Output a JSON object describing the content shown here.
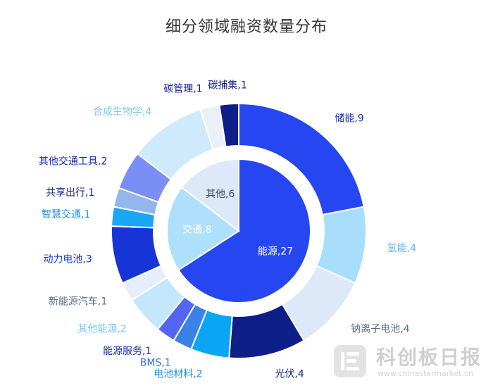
{
  "chart_data": {
    "type": "pie",
    "title": "细分领域融资数量分布",
    "inner": [
      {
        "label": "能源",
        "value": 27,
        "color": "#2546f0"
      },
      {
        "label": "交通",
        "value": 8,
        "color": "#aee0fb"
      },
      {
        "label": "其他",
        "value": 6,
        "color": "#dde9f8"
      }
    ],
    "outer": [
      {
        "label": "储能",
        "value": 9,
        "color": "#2546f0",
        "label_color": "#1a2fa8"
      },
      {
        "label": "氢能",
        "value": 4,
        "color": "#a8ddfb",
        "label_color": "#5fb8ec"
      },
      {
        "label": "钠离子电池",
        "value": 4,
        "color": "#dde9f8",
        "label_color": "#5a6b85"
      },
      {
        "label": "光伏",
        "value": 4,
        "color": "#0e1f8a",
        "label_color": "#0e1f8a"
      },
      {
        "label": "电池材料",
        "value": 2,
        "color": "#0aa6f5",
        "label_color": "#1a8fe0"
      },
      {
        "label": "BMS",
        "value": 1,
        "color": "#3b82e6",
        "label_color": "#2f6fd6"
      },
      {
        "label": "能源服务",
        "value": 1,
        "color": "#5365f2",
        "label_color": "#1a2fa8"
      },
      {
        "label": "其他能源",
        "value": 2,
        "color": "#c5e7fb",
        "label_color": "#79c7f2"
      },
      {
        "label": "新能源汽车",
        "value": 1,
        "color": "#e5eefa",
        "label_color": "#5a6b85"
      },
      {
        "label": "动力电池",
        "value": 3,
        "color": "#1734d6",
        "label_color": "#1734d6"
      },
      {
        "label": "智慧交通",
        "value": 1,
        "color": "#19a7f6",
        "label_color": "#1a8fe0"
      },
      {
        "label": "共享出行",
        "value": 1,
        "color": "#93b7ec",
        "label_color": "#0e1f8a"
      },
      {
        "label": "其他交通工具",
        "value": 2,
        "color": "#7a8ef5",
        "label_color": "#1a2fa8"
      },
      {
        "label": "合成生物学",
        "value": 4,
        "color": "#cfeafc",
        "label_color": "#79c7f2"
      },
      {
        "label": "碳管理",
        "value": 1,
        "color": "#eaf0fa",
        "label_color": "#0e1f8a"
      },
      {
        "label": "碳捕集",
        "value": 1,
        "color": "#0e1f8a",
        "label_color": "#0e1f8a"
      }
    ],
    "inner_label_color": "#ffffff",
    "inner_label_color_light": "#3a4a66"
  },
  "watermark": {
    "text": "科创板日报",
    "url": "www.chinastarmarket.cn"
  }
}
